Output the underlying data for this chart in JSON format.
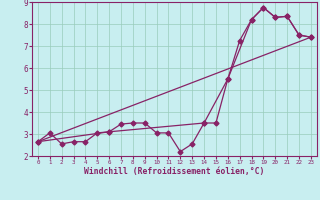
{
  "title": "",
  "xlabel": "Windchill (Refroidissement éolien,°C)",
  "background_color": "#c8eef0",
  "line_color": "#882266",
  "xlim": [
    -0.5,
    23.5
  ],
  "ylim": [
    2,
    9
  ],
  "xticks": [
    0,
    1,
    2,
    3,
    4,
    5,
    6,
    7,
    8,
    9,
    10,
    11,
    12,
    13,
    14,
    15,
    16,
    17,
    18,
    19,
    20,
    21,
    22,
    23
  ],
  "yticks": [
    2,
    3,
    4,
    5,
    6,
    7,
    8,
    9
  ],
  "grid_color": "#99ccbb",
  "series1_x": [
    0,
    1,
    2,
    3,
    4,
    5,
    6,
    7,
    8,
    9,
    10,
    11,
    12,
    13,
    14,
    15,
    16,
    17,
    18,
    19,
    20,
    21,
    22,
    23
  ],
  "series1_y": [
    2.65,
    3.05,
    2.55,
    2.65,
    2.65,
    3.05,
    3.1,
    3.45,
    3.5,
    3.5,
    3.05,
    3.05,
    2.2,
    2.55,
    3.5,
    3.5,
    5.5,
    7.25,
    8.2,
    8.75,
    8.3,
    8.35,
    7.5,
    7.4
  ],
  "series2_x": [
    0,
    23
  ],
  "series2_y": [
    2.65,
    7.4
  ],
  "series3_x": [
    0,
    6,
    14,
    16,
    18,
    19,
    20,
    21,
    22,
    23
  ],
  "series3_y": [
    2.65,
    3.1,
    3.5,
    5.5,
    8.2,
    8.75,
    8.3,
    8.35,
    7.5,
    7.4
  ],
  "xlabel_color": "#882266",
  "xlabel_fontsize": 5.8,
  "tick_fontsize": 5.5,
  "spine_color": "#882266",
  "marker_size": 2.5,
  "line_width": 0.9
}
